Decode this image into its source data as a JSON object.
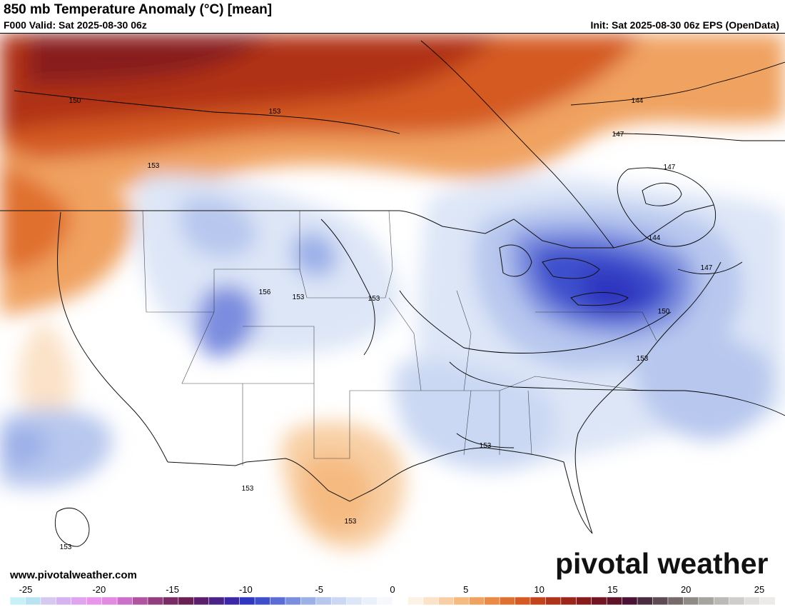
{
  "header": {
    "title": "850 mb Temperature Anomaly (°C) [mean]",
    "valid": "F000 Valid: Sat 2025-08-30 06z",
    "init": "Init: Sat 2025-08-30 06z EPS (OpenData)"
  },
  "footer": {
    "website": "www.pivotalweather.com",
    "brand": "pivotal weather"
  },
  "map": {
    "projection": "Lambert conformal, CONUS",
    "fill_field": "850 mb temperature anomaly (°C)",
    "contour_field": "850 mb height (dam)",
    "contour_labels": [
      {
        "text": "150",
        "region": "western Canada"
      },
      {
        "text": "153",
        "region": "central Canada"
      },
      {
        "text": "153",
        "region": "British Columbia"
      },
      {
        "text": "144",
        "region": "Quebec"
      },
      {
        "text": "147",
        "region": "Quebec"
      },
      {
        "text": "147",
        "region": "Quebec"
      },
      {
        "text": "144",
        "region": "Quebec"
      },
      {
        "text": "147",
        "region": "New England coast"
      },
      {
        "text": "150",
        "region": "Mid-Atlantic coast"
      },
      {
        "text": "153",
        "region": "North Carolina coast"
      },
      {
        "text": "156",
        "region": "Utah"
      },
      {
        "text": "153",
        "region": "Colorado"
      },
      {
        "text": "153",
        "region": "Kansas"
      },
      {
        "text": "153",
        "region": "Gulf coast"
      },
      {
        "text": "153",
        "region": "Mexico"
      },
      {
        "text": "153",
        "region": "central Mexico"
      },
      {
        "text": "153",
        "region": "eastern Pacific"
      }
    ]
  },
  "colorbar": {
    "min": -25,
    "max": 25,
    "step": 1,
    "tick_labels": [
      "-25",
      "-20",
      "-15",
      "-10",
      "-5",
      "0",
      "5",
      "10",
      "15",
      "20",
      "25"
    ],
    "colors": [
      "#c6f1f7",
      "#b8e3f3",
      "#d6c9f0",
      "#d4b3ee",
      "#e0a4ee",
      "#ea95ec",
      "#e289e0",
      "#cc6fc8",
      "#b0549f",
      "#923d80",
      "#7a2a64",
      "#6a1f55",
      "#5b1e6a",
      "#4a2288",
      "#3b26a8",
      "#2f36c0",
      "#3d4fcc",
      "#5a6cd6",
      "#7b8ddf",
      "#9cb0e8",
      "#b7c7ee",
      "#cbd8f3",
      "#dde6f7",
      "#eaf0fa",
      "#f6f8fc",
      "#ffffff",
      "#fdf2e6",
      "#fbe2c8",
      "#f8cfa4",
      "#f5ba80",
      "#f0a260",
      "#ea8a45",
      "#e0702f",
      "#d45a22",
      "#c3441a",
      "#b03218",
      "#9c2418",
      "#881a1c",
      "#731420",
      "#5f1228",
      "#4c1236",
      "#4a2c40",
      "#5e4a52",
      "#766a6a",
      "#8e8a86",
      "#a6a49e",
      "#bcbab6",
      "#cfcdca",
      "#dfdedc",
      "#ecebe9"
    ]
  }
}
